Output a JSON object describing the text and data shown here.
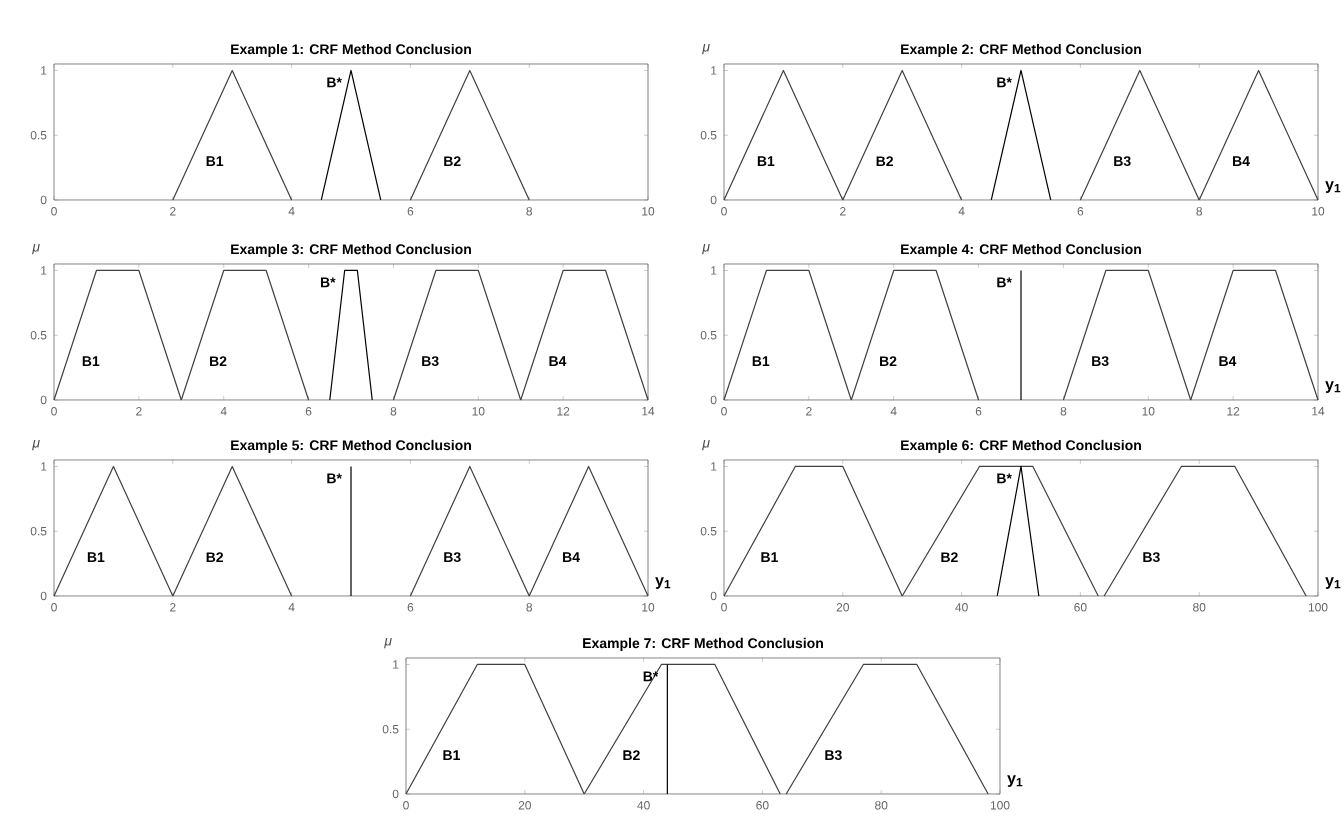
{
  "chart_data": [
    {
      "type": "line",
      "title": "Example 1: CRF Method Conclusion",
      "xlim": [
        0,
        10
      ],
      "xticks": [
        0,
        2,
        4,
        6,
        8,
        10
      ],
      "ylim": [
        0,
        1.05
      ],
      "yticks": [
        0,
        0.5,
        1
      ],
      "marker": "none",
      "line_style": "solid",
      "grid": false,
      "legend": false,
      "series": [
        {
          "name": "B1",
          "color": "#404040",
          "x": [
            2,
            3,
            4
          ],
          "values": [
            0,
            1,
            0
          ]
        },
        {
          "name": "B*",
          "color": "#000000",
          "x": [
            4.5,
            5,
            5.5
          ],
          "values": [
            0,
            1,
            0
          ]
        },
        {
          "name": "B2",
          "color": "#404040",
          "x": [
            6,
            7,
            8
          ],
          "values": [
            0,
            1,
            0
          ]
        }
      ]
    },
    {
      "type": "line",
      "title": "Example 2: CRF Method Conclusion",
      "ylabel": "μ",
      "xlabel": "y$_{1}$",
      "xlim": [
        0,
        10
      ],
      "xticks": [
        0,
        2,
        4,
        6,
        8,
        10
      ],
      "ylim": [
        0,
        1.05
      ],
      "yticks": [
        0,
        0.5,
        1
      ],
      "marker": "none",
      "line_style": "solid",
      "grid": false,
      "legend": false,
      "series": [
        {
          "name": "B1",
          "color": "#404040",
          "x": [
            0,
            1,
            2
          ],
          "values": [
            0,
            1,
            0
          ]
        },
        {
          "name": "B2",
          "color": "#404040",
          "x": [
            2,
            3,
            4
          ],
          "values": [
            0,
            1,
            0
          ]
        },
        {
          "name": "B*",
          "color": "#000000",
          "x": [
            4.5,
            5,
            5.5
          ],
          "values": [
            0,
            1,
            0
          ]
        },
        {
          "name": "B3",
          "color": "#404040",
          "x": [
            6,
            7,
            8
          ],
          "values": [
            0,
            1,
            0
          ]
        },
        {
          "name": "B4",
          "color": "#404040",
          "x": [
            8,
            9,
            10
          ],
          "values": [
            0,
            1,
            0
          ]
        }
      ]
    },
    {
      "type": "line",
      "title": "Example 3: CRF Method Conclusion",
      "ylabel": "μ",
      "xlim": [
        0,
        14
      ],
      "xticks": [
        0,
        2,
        4,
        6,
        8,
        10,
        12,
        14
      ],
      "ylim": [
        0,
        1.05
      ],
      "yticks": [
        0,
        0.5,
        1
      ],
      "marker": "none",
      "line_style": "solid",
      "grid": false,
      "legend": false,
      "series": [
        {
          "name": "B1",
          "color": "#404040",
          "x": [
            0,
            1,
            2,
            3
          ],
          "values": [
            0,
            1,
            1,
            0
          ]
        },
        {
          "name": "B2",
          "color": "#404040",
          "x": [
            3,
            4,
            5,
            6
          ],
          "values": [
            0,
            1,
            1,
            0
          ]
        },
        {
          "name": "B*",
          "color": "#000000",
          "x": [
            6.5,
            6.85,
            7.15,
            7.5
          ],
          "values": [
            0,
            1,
            1,
            0
          ]
        },
        {
          "name": "B3",
          "color": "#404040",
          "x": [
            8,
            9,
            10,
            11
          ],
          "values": [
            0,
            1,
            1,
            0
          ]
        },
        {
          "name": "B4",
          "color": "#404040",
          "x": [
            11,
            12,
            13,
            14
          ],
          "values": [
            0,
            1,
            1,
            0
          ]
        }
      ]
    },
    {
      "type": "line",
      "title": "Example 4: CRF Method Conclusion",
      "ylabel": "μ",
      "xlabel": "y$_{1}$",
      "xlim": [
        0,
        14
      ],
      "xticks": [
        0,
        2,
        4,
        6,
        8,
        10,
        12,
        14
      ],
      "ylim": [
        0,
        1.05
      ],
      "yticks": [
        0,
        0.5,
        1
      ],
      "marker": "none",
      "line_style": "solid",
      "grid": false,
      "legend": false,
      "series": [
        {
          "name": "B1",
          "color": "#404040",
          "x": [
            0,
            1,
            2,
            3
          ],
          "values": [
            0,
            1,
            1,
            0
          ]
        },
        {
          "name": "B2",
          "color": "#404040",
          "x": [
            3,
            4,
            5,
            6
          ],
          "values": [
            0,
            1,
            1,
            0
          ]
        },
        {
          "name": "B*",
          "color": "#000000",
          "x": [
            7,
            7
          ],
          "values": [
            0,
            1
          ]
        },
        {
          "name": "B3",
          "color": "#404040",
          "x": [
            8,
            9,
            10,
            11
          ],
          "values": [
            0,
            1,
            1,
            0
          ]
        },
        {
          "name": "B4",
          "color": "#404040",
          "x": [
            11,
            12,
            13,
            14
          ],
          "values": [
            0,
            1,
            1,
            0
          ]
        }
      ]
    },
    {
      "type": "line",
      "title": "Example 5: CRF Method Conclusion",
      "ylabel": "μ",
      "xlabel": "y$_{1}$",
      "xlim": [
        0,
        10
      ],
      "xticks": [
        0,
        2,
        4,
        6,
        8,
        10
      ],
      "ylim": [
        0,
        1.05
      ],
      "yticks": [
        0,
        0.5,
        1
      ],
      "marker": "none",
      "line_style": "solid",
      "grid": false,
      "legend": false,
      "series": [
        {
          "name": "B1",
          "color": "#404040",
          "x": [
            0,
            1,
            2
          ],
          "values": [
            0,
            1,
            0
          ]
        },
        {
          "name": "B2",
          "color": "#404040",
          "x": [
            2,
            3,
            4
          ],
          "values": [
            0,
            1,
            0
          ]
        },
        {
          "name": "B*",
          "color": "#000000",
          "x": [
            5,
            5
          ],
          "values": [
            0,
            1
          ]
        },
        {
          "name": "B3",
          "color": "#404040",
          "x": [
            6,
            7,
            8
          ],
          "values": [
            0,
            1,
            0
          ]
        },
        {
          "name": "B4",
          "color": "#404040",
          "x": [
            8,
            9,
            10
          ],
          "values": [
            0,
            1,
            0
          ]
        }
      ]
    },
    {
      "type": "line",
      "title": "Example 6: CRF Method Conclusion",
      "ylabel": "μ",
      "xlabel": "y$_{1}$",
      "xlim": [
        0,
        100
      ],
      "xticks": [
        0,
        20,
        40,
        60,
        80,
        100
      ],
      "ylim": [
        0,
        1.05
      ],
      "yticks": [
        0,
        0.5,
        1
      ],
      "marker": "none",
      "line_style": "solid",
      "grid": false,
      "legend": false,
      "series": [
        {
          "name": "B1",
          "color": "#404040",
          "x": [
            0,
            12,
            20,
            30
          ],
          "values": [
            0,
            1,
            1,
            0
          ]
        },
        {
          "name": "B2",
          "color": "#404040",
          "x": [
            30,
            43,
            52,
            63
          ],
          "values": [
            0,
            1,
            1,
            0
          ]
        },
        {
          "name": "B*",
          "color": "#000000",
          "x": [
            46,
            50,
            53
          ],
          "values": [
            0,
            1,
            0
          ]
        },
        {
          "name": "B3",
          "color": "#404040",
          "x": [
            64,
            77,
            86,
            98
          ],
          "values": [
            0,
            1,
            1,
            0
          ]
        }
      ]
    },
    {
      "type": "line",
      "title": "Example 7: CRF Method Conclusion",
      "ylabel": "μ",
      "xlabel": "y$_{1}$",
      "xlim": [
        0,
        100
      ],
      "xticks": [
        0,
        20,
        40,
        60,
        80,
        100
      ],
      "ylim": [
        0,
        1.05
      ],
      "yticks": [
        0,
        0.5,
        1
      ],
      "marker": "none",
      "line_style": "solid",
      "grid": false,
      "legend": false,
      "series": [
        {
          "name": "B1",
          "color": "#404040",
          "x": [
            0,
            12,
            20,
            30
          ],
          "values": [
            0,
            1,
            1,
            0
          ]
        },
        {
          "name": "B2",
          "color": "#404040",
          "x": [
            30,
            43,
            52,
            63
          ],
          "values": [
            0,
            1,
            1,
            0
          ]
        },
        {
          "name": "B*",
          "color": "#000000",
          "x": [
            44,
            44
          ],
          "values": [
            0,
            1
          ]
        },
        {
          "name": "B3",
          "color": "#404040",
          "x": [
            64,
            77,
            86,
            98
          ],
          "values": [
            0,
            1,
            1,
            0
          ]
        }
      ]
    }
  ]
}
